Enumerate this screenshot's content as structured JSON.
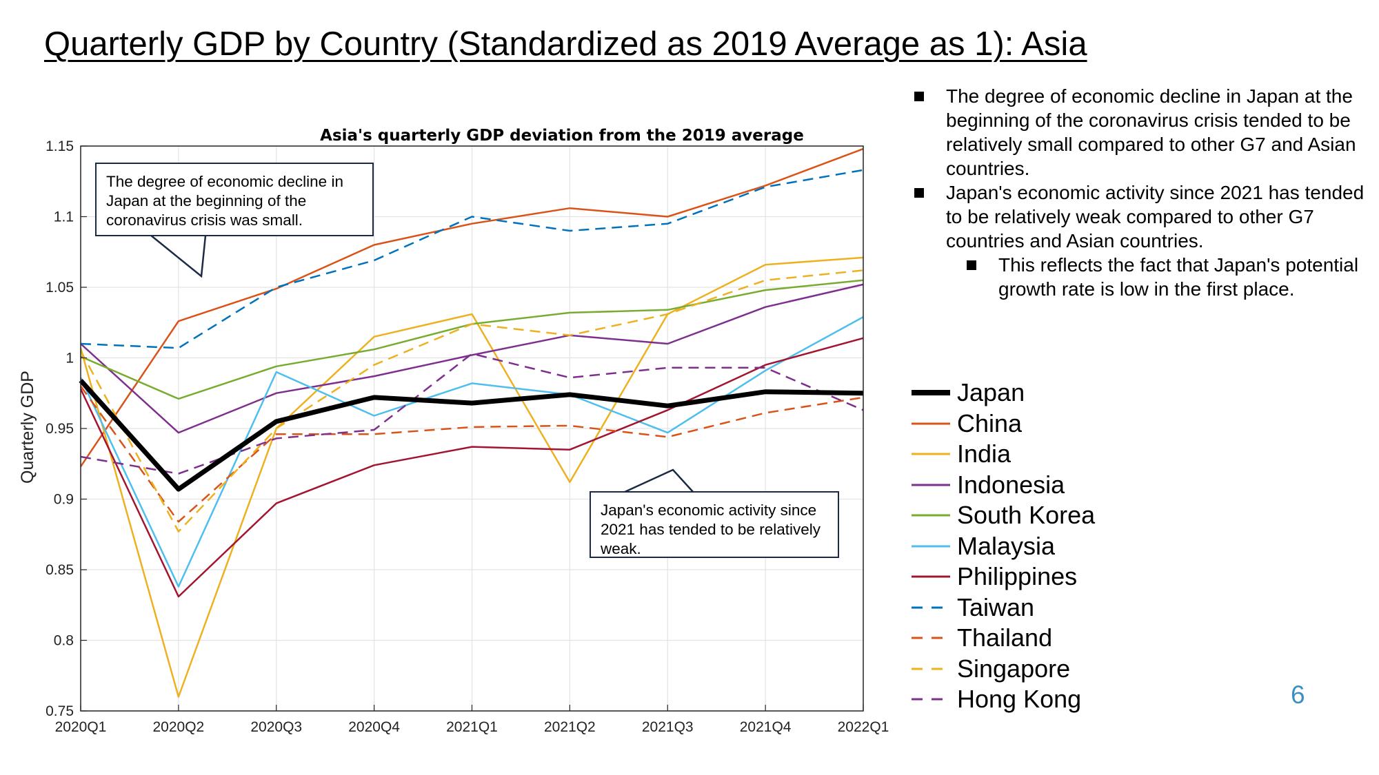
{
  "slide": {
    "title": "Quarterly GDP by Country (Standardized as 2019 Average as 1): Asia",
    "page_number": "6"
  },
  "bullets": [
    {
      "text": "The degree of economic decline in Japan at the beginning of the coronavirus crisis tended to be relatively small compared to other G7 and Asian countries.",
      "level": 1
    },
    {
      "text": "Japan's economic activity since 2021 has tended to be relatively weak compared to other G7 countries and Asian countries.",
      "level": 1
    },
    {
      "text": "This reflects the fact that Japan's potential growth rate is low in the first place.",
      "level": 2
    }
  ],
  "callouts": [
    {
      "text": " The degree of economic decline in Japan at the beginning of the coronavirus crisis was small."
    },
    {
      "text": "Japan's economic activity since 2021 has tended to be relatively weak."
    }
  ],
  "chart_data": {
    "type": "line",
    "title": "Asia's quarterly GDP deviation from the 2019 average",
    "xlabel": "",
    "ylabel": "Quarterly GDP",
    "ylim": [
      0.75,
      1.15
    ],
    "yticks": [
      "0.75",
      "0.8",
      "0.85",
      "0.9",
      "0.95",
      "1",
      "1.05",
      "1.1",
      "1.15"
    ],
    "ytick_values": [
      0.75,
      0.8,
      0.85,
      0.9,
      0.95,
      1.0,
      1.05,
      1.1,
      1.15
    ],
    "x": [
      "2020Q1",
      "2020Q2",
      "2020Q3",
      "2020Q4",
      "2021Q1",
      "2021Q2",
      "2021Q3",
      "2021Q4",
      "2022Q1"
    ],
    "grid": true,
    "legend_position": "right",
    "series": [
      {
        "name": "Japan",
        "color": "#000000",
        "dash": "solid",
        "bold": true,
        "values": [
          0.984,
          0.907,
          0.955,
          0.972,
          0.968,
          0.974,
          0.966,
          0.976,
          0.975
        ]
      },
      {
        "name": "China",
        "color": "#d95319",
        "dash": "solid",
        "values": [
          0.923,
          1.026,
          1.049,
          1.08,
          1.095,
          1.106,
          1.1,
          1.122,
          1.148
        ]
      },
      {
        "name": "India",
        "color": "#edb120",
        "dash": "solid",
        "values": [
          1.007,
          0.76,
          0.95,
          1.015,
          1.031,
          0.912,
          1.031,
          1.066,
          1.071
        ]
      },
      {
        "name": "Indonesia",
        "color": "#7e2f8e",
        "dash": "solid",
        "values": [
          1.01,
          0.947,
          0.975,
          0.987,
          1.002,
          1.016,
          1.01,
          1.036,
          1.052
        ]
      },
      {
        "name": "South Korea",
        "color": "#77ac30",
        "dash": "solid",
        "values": [
          1.001,
          0.971,
          0.994,
          1.006,
          1.024,
          1.032,
          1.034,
          1.048,
          1.055
        ]
      },
      {
        "name": "Malaysia",
        "color": "#4dbeee",
        "dash": "solid",
        "values": [
          0.986,
          0.838,
          0.99,
          0.959,
          0.982,
          0.974,
          0.947,
          0.991,
          1.029
        ]
      },
      {
        "name": "Philippines",
        "color": "#a2142f",
        "dash": "solid",
        "values": [
          0.978,
          0.831,
          0.897,
          0.924,
          0.937,
          0.935,
          0.963,
          0.995,
          1.014
        ]
      },
      {
        "name": "Taiwan",
        "color": "#0072bd",
        "dash": "dashed",
        "values": [
          1.01,
          1.007,
          1.05,
          1.069,
          1.1,
          1.09,
          1.095,
          1.121,
          1.133
        ]
      },
      {
        "name": "Thailand",
        "color": "#d95319",
        "dash": "dashed",
        "values": [
          0.98,
          0.884,
          0.946,
          0.946,
          0.951,
          0.952,
          0.944,
          0.961,
          0.972
        ]
      },
      {
        "name": "Singapore",
        "color": "#edb120",
        "dash": "dashed",
        "values": [
          1.005,
          0.877,
          0.95,
          0.995,
          1.024,
          1.016,
          1.031,
          1.055,
          1.062
        ]
      },
      {
        "name": "Hong Kong",
        "color": "#7e2f8e",
        "dash": "dashed",
        "values": [
          0.93,
          0.918,
          0.943,
          0.949,
          1.003,
          0.986,
          0.993,
          0.993,
          0.963
        ]
      }
    ]
  }
}
